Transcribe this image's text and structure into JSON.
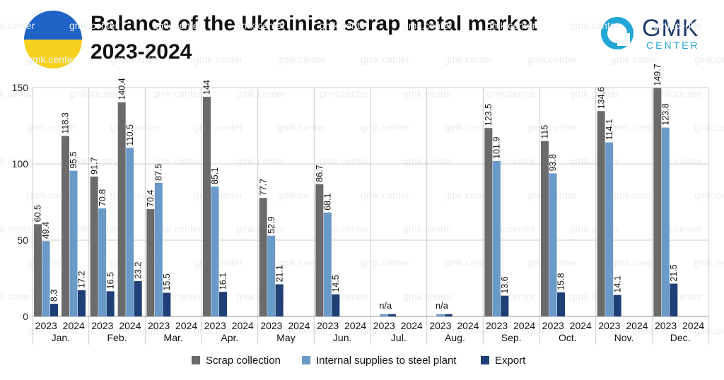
{
  "header": {
    "title_line1": "Balance of the Ukrainian scrap metal market",
    "title_line2": "2023-2024",
    "logo_name": "GMK",
    "logo_sub": "CENTER",
    "watermark": "gmk.center"
  },
  "chart_data": {
    "type": "bar",
    "title": "Balance of the Ukrainian scrap metal market 2023-2024",
    "ylim": [
      0,
      150
    ],
    "yticks": [
      0,
      50,
      100,
      150
    ],
    "grid": true,
    "legend_position": "bottom",
    "months": [
      "Jan.",
      "Feb.",
      "Mar.",
      "Apr.",
      "May",
      "Jun.",
      "Jul.",
      "Aug.",
      "Sep.",
      "Oct.",
      "Nov.",
      "Dec."
    ],
    "years": [
      "2023",
      "2024"
    ],
    "colors": {
      "Scrap collection": "#6b6b6b",
      "Internal supplies to steel plant": "#6a9ac8",
      "Export": "#1f3f77"
    },
    "series": [
      {
        "name": "Scrap collection",
        "values_2023": [
          60.5,
          91.7,
          70.4,
          144,
          77.7,
          86.7,
          null,
          null,
          123.5,
          115,
          134.6,
          149.7
        ],
        "values_2024": [
          118.3,
          140.4,
          null,
          null,
          null,
          null,
          null,
          null,
          null,
          null,
          null,
          null
        ]
      },
      {
        "name": "Internal supplies to steel plant",
        "values_2023": [
          49.4,
          70.8,
          87.5,
          85.1,
          52.9,
          68.1,
          1.5,
          1.5,
          101.9,
          93.8,
          114.1,
          123.8
        ],
        "values_2024": [
          95.5,
          110.5,
          null,
          null,
          null,
          null,
          null,
          null,
          null,
          null,
          null,
          null
        ]
      },
      {
        "name": "Export",
        "values_2023": [
          8.3,
          16.5,
          15.5,
          16.1,
          21.1,
          14.5,
          1.5,
          1.5,
          13.6,
          15.8,
          14.1,
          21.5
        ],
        "values_2024": [
          17.2,
          23.2,
          null,
          null,
          null,
          null,
          null,
          null,
          null,
          null,
          null,
          null
        ]
      }
    ],
    "labels_2023": [
      [
        "60.5",
        "49.4",
        "8.3"
      ],
      [
        "91.7",
        "70.8",
        "16.5"
      ],
      [
        "70.4",
        "87.5",
        "15.5"
      ],
      [
        "144",
        "85.1",
        "16.1"
      ],
      [
        "77.7",
        "52.9",
        "21.1"
      ],
      [
        "86.7",
        "68.1",
        "14.5"
      ],
      [
        "",
        "",
        ""
      ],
      [
        "",
        "",
        ""
      ],
      [
        "123.5",
        "101.9",
        "13.6"
      ],
      [
        "115",
        "93.8",
        "15.8"
      ],
      [
        "134.6",
        "114.1",
        "14.1"
      ],
      [
        "149.7",
        "123.8",
        "21.5"
      ]
    ],
    "labels_2024": [
      [
        "118.3",
        "95.5",
        "17.2"
      ],
      [
        "140.4",
        "110.5",
        "23.2"
      ],
      [
        "",
        "",
        ""
      ],
      [
        "",
        "",
        ""
      ],
      [
        "",
        "",
        ""
      ],
      [
        "",
        "",
        ""
      ],
      [
        "",
        "",
        ""
      ],
      [
        "",
        "",
        ""
      ],
      [
        "",
        "",
        ""
      ],
      [
        "",
        "",
        ""
      ],
      [
        "",
        "",
        ""
      ],
      [
        "",
        "",
        ""
      ]
    ],
    "na_label": "n/a",
    "na_months": [
      "Jul.",
      "Aug."
    ]
  }
}
